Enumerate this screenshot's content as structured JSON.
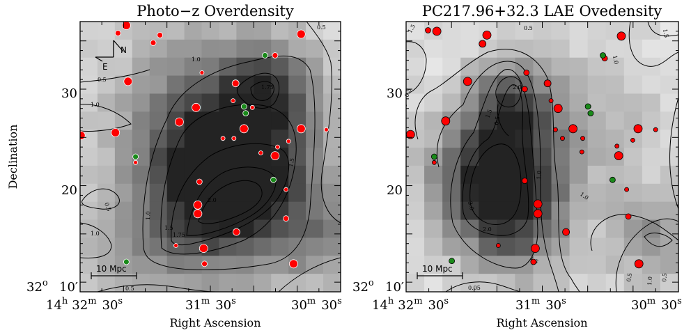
{
  "panels": [
    {
      "title": "Photo−z Overdensity",
      "compass": {
        "north": "N",
        "east": "E"
      },
      "scalebar": "10 Mpc",
      "contour_labels": [
        "0.5",
        "1.0",
        "1.5",
        "1.75",
        "2.0",
        "1.0",
        "0.5",
        "1.5",
        "1.75",
        "1.0",
        "0.5",
        "1.0",
        "0.5"
      ],
      "ra_ticks": [
        {
          "h": "14",
          "hu": "h",
          "m": "32",
          "mu": "m",
          "s": "30",
          "su": "s"
        },
        {
          "m": "31",
          "mu": "m",
          "s": "30",
          "su": "s"
        },
        {
          "m": "30",
          "mu": "m",
          "s": "30",
          "su": "s"
        }
      ],
      "dec_ticks": [
        "30",
        "20",
        "10′"
      ],
      "dec_origin": {
        "deg": "32",
        "deg_unit": "o"
      }
    },
    {
      "title": "PC217.96+32.3 LAE Ovedensity",
      "scalebar": "10 Mpc",
      "contour_labels": [
        "0.5",
        "1.5",
        "0.5",
        "1.0",
        "1.5",
        "2.0",
        "2.0",
        "2.0",
        "1.5",
        "1.0",
        "0.5",
        "1.0",
        "1.5",
        "0.05",
        "0.5",
        "0.5",
        "1.0"
      ],
      "ra_ticks": [
        {
          "h": "14",
          "hu": "h",
          "m": "32",
          "mu": "m",
          "s": "30",
          "su": "s"
        },
        {
          "m": "31",
          "mu": "m",
          "s": "30",
          "su": "s"
        },
        {
          "m": "30",
          "mu": "m",
          "s": "30",
          "su": "s"
        }
      ],
      "dec_ticks": [
        "30",
        "20",
        "10′"
      ],
      "dec_origin": {
        "deg": "32",
        "deg_unit": "o"
      }
    }
  ],
  "axes": {
    "xlabel": "Right Ascension",
    "ylabel": "Declination"
  },
  "colors": {
    "red_points": "#ff0000",
    "green_points": "#1a8a1a",
    "contour": "#000000",
    "map_dark": "#222222",
    "map_light": "#f4f4f4"
  },
  "chart_data": [
    {
      "type": "heatmap",
      "title": "Photo−z Overdensity",
      "xlabel": "Right Ascension",
      "ylabel": "Declination",
      "xlim_ra_min": [
        32.9,
        29.8
      ],
      "ylim_dec_arcmin": [
        9.0,
        37.0
      ],
      "contour_levels": [
        0.5,
        1.0,
        1.5,
        1.75,
        2.0
      ],
      "red_sources": [
        {
          "ra": 32.35,
          "dec": 36.6,
          "r": 6
        },
        {
          "ra": 32.45,
          "dec": 35.8,
          "r": 4
        },
        {
          "ra": 31.95,
          "dec": 35.6,
          "r": 4
        },
        {
          "ra": 32.03,
          "dec": 34.8,
          "r": 4
        },
        {
          "ra": 30.27,
          "dec": 35.7,
          "r": 6
        },
        {
          "ra": 30.58,
          "dec": 33.5,
          "r": 4
        },
        {
          "ra": 32.33,
          "dec": 30.8,
          "r": 6
        },
        {
          "ra": 31.45,
          "dec": 31.7,
          "r": 3
        },
        {
          "ra": 31.05,
          "dec": 30.6,
          "r": 5
        },
        {
          "ra": 31.08,
          "dec": 28.8,
          "r": 3
        },
        {
          "ra": 30.85,
          "dec": 28.1,
          "r": 3
        },
        {
          "ra": 31.52,
          "dec": 28.1,
          "r": 6
        },
        {
          "ra": 31.72,
          "dec": 26.6,
          "r": 6
        },
        {
          "ra": 30.95,
          "dec": 25.9,
          "r": 6
        },
        {
          "ra": 30.27,
          "dec": 25.9,
          "r": 6
        },
        {
          "ra": 29.97,
          "dec": 25.8,
          "r": 3
        },
        {
          "ra": 32.48,
          "dec": 25.5,
          "r": 6
        },
        {
          "ra": 32.89,
          "dec": 25.2,
          "r": 6
        },
        {
          "ra": 32.92,
          "dec": 28.3,
          "r": 3
        },
        {
          "ra": 31.07,
          "dec": 24.9,
          "r": 3
        },
        {
          "ra": 31.2,
          "dec": 24.9,
          "r": 3
        },
        {
          "ra": 30.42,
          "dec": 24.6,
          "r": 3
        },
        {
          "ra": 30.55,
          "dec": 24.0,
          "r": 3
        },
        {
          "ra": 30.58,
          "dec": 23.1,
          "r": 6
        },
        {
          "ra": 30.75,
          "dec": 23.4,
          "r": 3
        },
        {
          "ra": 32.24,
          "dec": 22.4,
          "r": 3
        },
        {
          "ra": 31.48,
          "dec": 20.4,
          "r": 4
        },
        {
          "ra": 30.45,
          "dec": 19.6,
          "r": 3
        },
        {
          "ra": 31.5,
          "dec": 18.0,
          "r": 6
        },
        {
          "ra": 31.5,
          "dec": 17.1,
          "r": 6
        },
        {
          "ra": 30.45,
          "dec": 16.6,
          "r": 4
        },
        {
          "ra": 31.04,
          "dec": 15.2,
          "r": 5
        },
        {
          "ra": 31.43,
          "dec": 13.5,
          "r": 6
        },
        {
          "ra": 31.42,
          "dec": 11.9,
          "r": 4
        },
        {
          "ra": 31.76,
          "dec": 13.8,
          "r": 3
        },
        {
          "ra": 30.36,
          "dec": 11.9,
          "r": 6
        }
      ],
      "green_sources": [
        {
          "ra": 30.95,
          "dec": 28.2
        },
        {
          "ra": 30.93,
          "dec": 27.5
        },
        {
          "ra": 30.7,
          "dec": 33.5
        },
        {
          "ra": 32.24,
          "dec": 23.0
        },
        {
          "ra": 30.6,
          "dec": 20.6
        },
        {
          "ra": 32.35,
          "dec": 12.1
        }
      ]
    },
    {
      "type": "heatmap",
      "title": "PC217.96+32.3 LAE Ovedensity",
      "xlabel": "Right Ascension",
      "ylabel": "Declination",
      "xlim_ra_min": [
        32.9,
        29.8
      ],
      "ylim_dec_arcmin": [
        9.0,
        37.0
      ],
      "contour_levels": [
        0.05,
        0.5,
        1.0,
        1.5,
        2.0
      ],
      "red_sources": [
        {
          "ra": 32.55,
          "dec": 36.0,
          "r": 6
        },
        {
          "ra": 32.65,
          "dec": 36.1,
          "r": 4
        },
        {
          "ra": 31.98,
          "dec": 35.6,
          "r": 6
        },
        {
          "ra": 32.03,
          "dec": 34.7,
          "r": 5
        },
        {
          "ra": 30.45,
          "dec": 35.5,
          "r": 6
        },
        {
          "ra": 32.2,
          "dec": 30.8,
          "r": 6
        },
        {
          "ra": 31.53,
          "dec": 31.7,
          "r": 4
        },
        {
          "ra": 31.29,
          "dec": 30.6,
          "r": 5
        },
        {
          "ra": 31.55,
          "dec": 30.0,
          "r": 4
        },
        {
          "ra": 30.64,
          "dec": 33.2,
          "r": 4
        },
        {
          "ra": 31.17,
          "dec": 28.0,
          "r": 6
        },
        {
          "ra": 31.25,
          "dec": 28.8,
          "r": 3
        },
        {
          "ra": 31.2,
          "dec": 25.8,
          "r": 3
        },
        {
          "ra": 31.0,
          "dec": 25.9,
          "r": 6
        },
        {
          "ra": 31.12,
          "dec": 24.9,
          "r": 3
        },
        {
          "ra": 30.89,
          "dec": 24.9,
          "r": 3
        },
        {
          "ra": 32.45,
          "dec": 26.7,
          "r": 6
        },
        {
          "ra": 32.85,
          "dec": 25.3,
          "r": 6
        },
        {
          "ra": 32.92,
          "dec": 28.3,
          "r": 3
        },
        {
          "ra": 30.9,
          "dec": 23.5,
          "r": 3
        },
        {
          "ra": 30.82,
          "dec": 28.2,
          "r": 3
        },
        {
          "ra": 30.5,
          "dec": 24.1,
          "r": 3
        },
        {
          "ra": 30.48,
          "dec": 23.1,
          "r": 6
        },
        {
          "ra": 30.32,
          "dec": 24.7,
          "r": 3
        },
        {
          "ra": 30.26,
          "dec": 25.9,
          "r": 6
        },
        {
          "ra": 30.06,
          "dec": 25.8,
          "r": 3
        },
        {
          "ra": 32.58,
          "dec": 22.4,
          "r": 3
        },
        {
          "ra": 31.55,
          "dec": 20.5,
          "r": 4
        },
        {
          "ra": 30.39,
          "dec": 19.6,
          "r": 3
        },
        {
          "ra": 31.4,
          "dec": 18.1,
          "r": 6
        },
        {
          "ra": 31.4,
          "dec": 17.1,
          "r": 6
        },
        {
          "ra": 30.37,
          "dec": 16.8,
          "r": 4
        },
        {
          "ra": 31.08,
          "dec": 15.2,
          "r": 5
        },
        {
          "ra": 31.43,
          "dec": 13.5,
          "r": 6
        },
        {
          "ra": 31.45,
          "dec": 12.1,
          "r": 4
        },
        {
          "ra": 31.85,
          "dec": 13.8,
          "r": 3
        },
        {
          "ra": 30.25,
          "dec": 11.9,
          "r": 6
        }
      ],
      "green_sources": [
        {
          "ra": 30.83,
          "dec": 28.2
        },
        {
          "ra": 30.8,
          "dec": 27.5
        },
        {
          "ra": 30.66,
          "dec": 33.5
        },
        {
          "ra": 32.58,
          "dec": 23.0
        },
        {
          "ra": 30.55,
          "dec": 20.6
        },
        {
          "ra": 32.38,
          "dec": 12.2
        }
      ]
    }
  ]
}
